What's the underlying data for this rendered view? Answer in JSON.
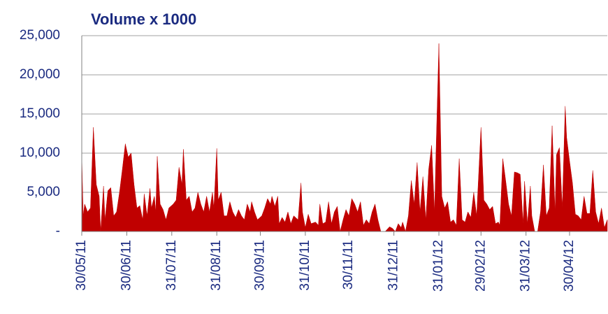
{
  "chart_data": {
    "type": "area",
    "title": "Volume x 1000",
    "color": "#c00000",
    "grid": true,
    "x": [
      "30/05/11",
      "31/05/11",
      "01/06/11",
      "03/06/11",
      "05/06/11",
      "07/06/11",
      "09/06/11",
      "11/06/11",
      "12/06/11",
      "14/06/11",
      "15/06/11",
      "17/06/11",
      "19/06/11",
      "21/06/11",
      "23/06/11",
      "25/06/11",
      "27/06/11",
      "29/06/11",
      "01/07/11",
      "03/07/11",
      "05/07/11",
      "07/07/11",
      "09/07/11",
      "11/07/11",
      "12/07/11",
      "14/07/11",
      "16/07/11",
      "17/07/11",
      "19/07/11",
      "20/07/11",
      "21/07/11",
      "23/07/11",
      "25/07/11",
      "27/07/11",
      "29/07/11",
      "01/08/11",
      "03/08/11",
      "05/08/11",
      "07/08/11",
      "08/08/11",
      "10/08/11",
      "12/08/11",
      "14/08/11",
      "16/08/11",
      "18/08/11",
      "20/08/11",
      "22/08/11",
      "24/08/11",
      "26/08/11",
      "28/08/11",
      "29/08/11",
      "31/08/11",
      "01/09/11",
      "03/09/11",
      "05/09/11",
      "07/09/11",
      "09/09/11",
      "11/09/11",
      "13/09/11",
      "15/09/11",
      "17/09/11",
      "19/09/11",
      "21/09/11",
      "23/09/11",
      "24/09/11",
      "26/09/11",
      "28/09/11",
      "01/10/11",
      "03/10/11",
      "05/10/11",
      "07/10/11",
      "08/10/11",
      "10/10/11",
      "12/10/11",
      "13/10/11",
      "15/10/11",
      "17/10/11",
      "19/10/11",
      "21/10/11",
      "23/10/11",
      "26/10/11",
      "28/10/11",
      "29/10/11",
      "31/10/11",
      "02/11/11",
      "04/11/11",
      "07/11/11",
      "09/11/11",
      "10/11/11",
      "12/11/11",
      "14/11/11",
      "16/11/11",
      "18/11/11",
      "20/11/11",
      "22/11/11",
      "24/11/11",
      "26/11/11",
      "28/11/11",
      "30/11/11",
      "02/12/11",
      "04/12/11",
      "06/12/11",
      "08/12/11",
      "10/12/11",
      "12/12/11",
      "14/12/11",
      "16/12/11",
      "18/12/11",
      "20/12/11",
      "22/12/11",
      "25/12/11",
      "28/12/11",
      "30/12/11",
      "01/01/12",
      "03/01/12",
      "05/01/12",
      "06/01/12",
      "08/01/12",
      "10/01/12",
      "12/01/12",
      "14/01/12",
      "16/01/12",
      "18/01/12",
      "20/01/12",
      "22/01/12",
      "24/01/12",
      "26/01/12",
      "28/01/12",
      "29/01/12",
      "31/01/12",
      "02/02/12",
      "04/02/12",
      "06/02/12",
      "08/02/12",
      "10/02/12",
      "12/02/12",
      "14/02/12",
      "16/02/12",
      "18/02/12",
      "20/02/12",
      "22/02/12",
      "24/02/12",
      "26/02/12",
      "29/02/12",
      "02/03/12",
      "04/03/12",
      "06/03/12",
      "08/03/12",
      "10/03/12",
      "12/03/12",
      "13/03/12",
      "15/03/12",
      "17/03/12",
      "19/03/12",
      "21/03/12",
      "23/03/12",
      "25/03/12",
      "27/03/12",
      "29/03/12",
      "30/03/12",
      "01/04/12",
      "03/04/12",
      "04/04/12",
      "06/04/12",
      "08/04/12",
      "10/04/12",
      "12/04/12",
      "14/04/12",
      "16/04/12",
      "18/04/12",
      "20/04/12",
      "21/04/12",
      "23/04/12",
      "25/04/12",
      "27/04/12",
      "28/04/12",
      "30/04/12",
      "02/05/12",
      "04/05/12",
      "06/05/12",
      "08/05/12",
      "10/05/12",
      "12/05/12",
      "14/05/12",
      "16/05/12",
      "18/05/12",
      "20/05/12",
      "22/05/12",
      "24/05/12",
      "26/05/12"
    ],
    "values": [
      9800,
      2000,
      3500,
      2500,
      3000,
      13300,
      6000,
      4500,
      0,
      5800,
      1500,
      5200,
      5600,
      2000,
      2500,
      5000,
      8000,
      11200,
      9500,
      10000,
      6000,
      3000,
      3300,
      1500,
      4800,
      2000,
      5500,
      3000,
      4500,
      2500,
      9600,
      3500,
      2800,
      1500,
      3000,
      3500,
      4000,
      8200,
      6000,
      10500,
      4000,
      4500,
      2500,
      3000,
      5000,
      3500,
      2500,
      4500,
      2500,
      5000,
      3000,
      10600,
      4000,
      5000,
      2000,
      2000,
      3800,
      2500,
      1800,
      2800,
      2000,
      1500,
      3500,
      2500,
      3800,
      2500,
      1500,
      2000,
      3000,
      4200,
      3500,
      4500,
      3200,
      4500,
      1000,
      1800,
      1200,
      2500,
      1000,
      2000,
      1500,
      6200,
      2500,
      500,
      2200,
      1000,
      1200,
      800,
      3500,
      1000,
      1200,
      3800,
      1000,
      2500,
      3200,
      0,
      1500,
      2800,
      2000,
      4200,
      3500,
      2500,
      3800,
      800,
      1500,
      1000,
      2500,
      3500,
      1500,
      0,
      0,
      600,
      400,
      0,
      1000,
      500,
      1200,
      0,
      2000,
      6500,
      3500,
      8800,
      2500,
      7000,
      1500,
      8000,
      11000,
      2500,
      10000,
      24000,
      4500,
      3000,
      3800,
      1200,
      1500,
      800,
      9300,
      1500,
      1200,
      2500,
      1800,
      5000,
      2000,
      13300,
      4000,
      3500,
      2800,
      3200,
      1000,
      1200,
      800,
      9300,
      6500,
      3500,
      2000,
      7600,
      7500,
      7300,
      1000,
      6400,
      1000,
      5800,
      2000,
      0,
      0,
      2500,
      8500,
      2000,
      3000,
      13500,
      2500,
      9800,
      10700,
      3000,
      16000,
      12000,
      9000,
      6200,
      2200,
      2000,
      1500,
      4500,
      2300,
      2300,
      7800,
      2500,
      1000,
      3000,
      500,
      1500
    ],
    "xlim": [
      "30/05/11",
      "26/05/12"
    ],
    "xticks": [
      "30/05/11",
      "30/06/11",
      "31/07/11",
      "31/08/11",
      "30/09/11",
      "31/10/11",
      "30/11/11",
      "31/12/11",
      "31/01/12",
      "29/02/12",
      "31/03/12",
      "30/04/12"
    ],
    "ylim": [
      0,
      25000
    ],
    "yticks": [
      {
        "value": 0,
        "label": "-"
      },
      {
        "value": 5000,
        "label": "5,000"
      },
      {
        "value": 10000,
        "label": "10,000"
      },
      {
        "value": 15000,
        "label": "15,000"
      },
      {
        "value": 20000,
        "label": "20,000"
      },
      {
        "value": 25000,
        "label": "25,000"
      }
    ]
  }
}
